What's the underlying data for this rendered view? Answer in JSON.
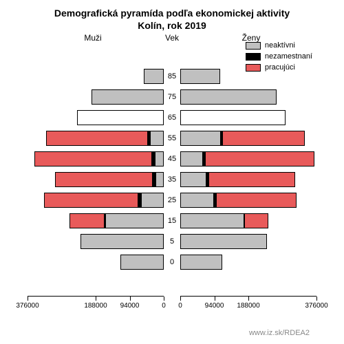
{
  "title_line1": "Demografická pyramída podľa ekonomickej aktivity",
  "title_line2": "Kolín, rok 2019",
  "header": {
    "men": "Muži",
    "age": "Vek",
    "women": "Ženy"
  },
  "legend": {
    "inactive": "neaktívni",
    "unemployed": "nezamestnaní",
    "employed": "pracujúci"
  },
  "colors": {
    "inactive": "#c0c0c0",
    "unemployed": "#000000",
    "employed": "#e85a5a",
    "empty": "#ffffff",
    "background": "#ffffff",
    "url": "#a0a0a0",
    "border": "#000000"
  },
  "axis": {
    "max": 376000,
    "labels_left": [
      "376000",
      "188000",
      "94000",
      "0"
    ],
    "positions_left_pct": [
      0,
      50,
      75,
      100
    ],
    "labels_right": [
      "0",
      "94000",
      "188000",
      "376000"
    ],
    "positions_right_pct": [
      0,
      25,
      50,
      100
    ]
  },
  "url": "www.iz.sk/RDEA2",
  "rows": [
    {
      "age": "85",
      "left": {
        "inactive": 55000,
        "unemployed": 0,
        "employed": 0,
        "empty": false
      },
      "right": {
        "inactive": 110000,
        "unemployed": 0,
        "employed": 0,
        "empty": false
      }
    },
    {
      "age": "75",
      "left": {
        "inactive": 200000,
        "unemployed": 0,
        "employed": 0,
        "empty": false
      },
      "right": {
        "inactive": 265000,
        "unemployed": 0,
        "employed": 0,
        "empty": false
      }
    },
    {
      "age": "65",
      "left": {
        "inactive": 0,
        "unemployed": 0,
        "employed": 0,
        "empty": true,
        "empty_width": 240000
      },
      "right": {
        "inactive": 0,
        "unemployed": 0,
        "employed": 0,
        "empty": true,
        "empty_width": 290000
      }
    },
    {
      "age": "55",
      "left": {
        "inactive": 35000,
        "unemployed": 10000,
        "employed": 280000,
        "empty": false
      },
      "right": {
        "inactive": 110000,
        "unemployed": 8000,
        "employed": 225000,
        "empty": false
      }
    },
    {
      "age": "45",
      "left": {
        "inactive": 22000,
        "unemployed": 10000,
        "employed": 325000,
        "empty": false
      },
      "right": {
        "inactive": 60000,
        "unemployed": 10000,
        "employed": 300000,
        "empty": false
      }
    },
    {
      "age": "35",
      "left": {
        "inactive": 20000,
        "unemployed": 10000,
        "employed": 270000,
        "empty": false
      },
      "right": {
        "inactive": 70000,
        "unemployed": 8000,
        "employed": 240000,
        "empty": false
      }
    },
    {
      "age": "25",
      "left": {
        "inactive": 60000,
        "unemployed": 12000,
        "employed": 258000,
        "empty": false
      },
      "right": {
        "inactive": 90000,
        "unemployed": 10000,
        "employed": 220000,
        "empty": false
      }
    },
    {
      "age": "15",
      "left": {
        "inactive": 160000,
        "unemployed": 5000,
        "employed": 95000,
        "empty": false
      },
      "right": {
        "inactive": 175000,
        "unemployed": 4000,
        "employed": 65000,
        "empty": false
      }
    },
    {
      "age": "5",
      "left": {
        "inactive": 230000,
        "unemployed": 0,
        "employed": 0,
        "empty": false
      },
      "right": {
        "inactive": 240000,
        "unemployed": 0,
        "employed": 0,
        "empty": false
      }
    },
    {
      "age": "0",
      "left": {
        "inactive": 120000,
        "unemployed": 0,
        "employed": 0,
        "empty": false
      },
      "right": {
        "inactive": 115000,
        "unemployed": 0,
        "employed": 0,
        "empty": false
      }
    }
  ]
}
